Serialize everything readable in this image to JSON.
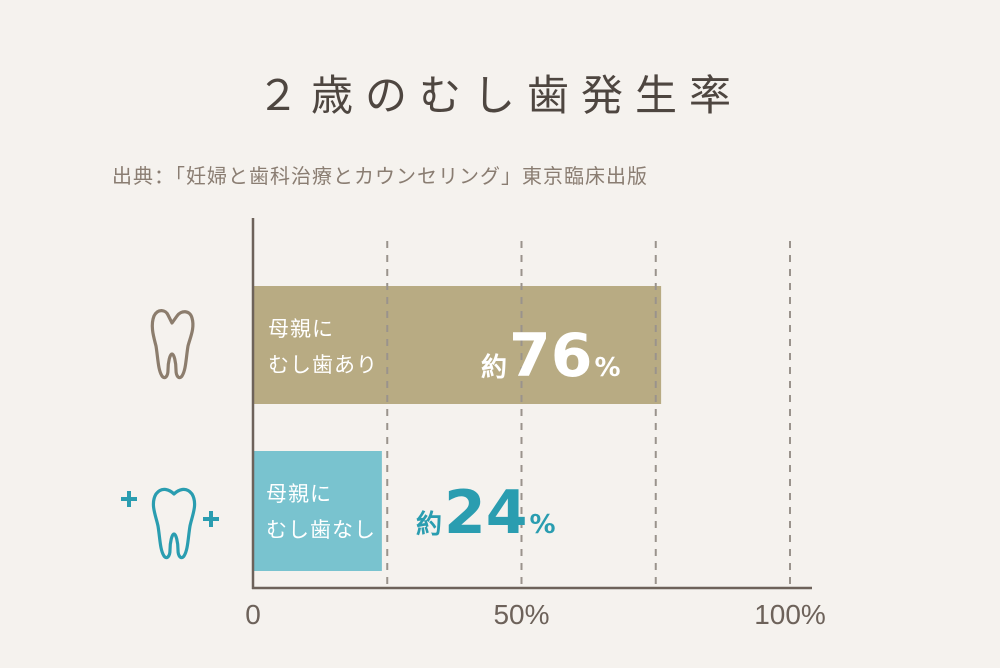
{
  "title": "２歳のむし歯発生率",
  "source": "出典：「妊婦と歯科治療とカウンセリング」東京臨床出版",
  "colors": {
    "background": "#f5f2ee",
    "bar_with_caries": "#b8ab83",
    "bar_without_caries": "#79c3cf",
    "teal_text": "#2a9db0",
    "axis": "#6d625a",
    "grid": "#9a938c"
  },
  "icons": [
    "decayed-tooth-icon",
    "healthy-tooth-icon",
    "plus-icon"
  ],
  "chart_data": {
    "type": "bar",
    "orientation": "horizontal",
    "categories": [
      [
        "母親に",
        "むし歯あり"
      ],
      [
        "母親に",
        "むし歯なし"
      ]
    ],
    "values": [
      76,
      24
    ],
    "value_labels": [
      {
        "prefix": "約",
        "number": "76",
        "unit": "%"
      },
      {
        "prefix": "約",
        "number": "24",
        "unit": "%"
      }
    ],
    "xlim": [
      0,
      100
    ],
    "x_ticks": [
      {
        "value": 0,
        "label": "0"
      },
      {
        "value": 50,
        "label": "50%"
      },
      {
        "value": 100,
        "label": "100%"
      }
    ],
    "gridlines": [
      25,
      50,
      75,
      100
    ],
    "grid": true
  }
}
